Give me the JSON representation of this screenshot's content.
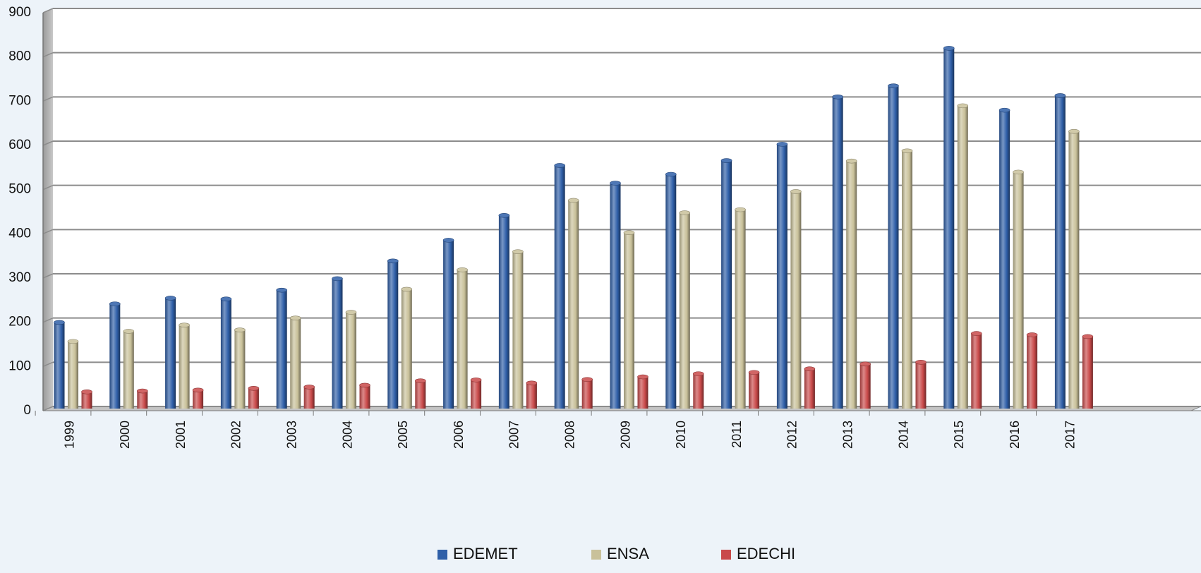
{
  "chart_data": {
    "type": "bar",
    "title": "",
    "xlabel": "",
    "ylabel": "",
    "ylim": [
      0,
      900
    ],
    "yticks": [
      0,
      100,
      200,
      300,
      400,
      500,
      600,
      700,
      800,
      900
    ],
    "grid": true,
    "legend_position": "bottom",
    "categories": [
      "1999",
      "2000",
      "2001",
      "2002",
      "2003",
      "2004",
      "2005",
      "2006",
      "2007",
      "2008",
      "2009",
      "2010",
      "2011",
      "2012",
      "2013",
      "2014",
      "2015",
      "2016",
      "2017"
    ],
    "series": [
      {
        "name": "EDEMET",
        "color": "#2f5fa8",
        "values": [
          190,
          232,
          245,
          243,
          263,
          289,
          329,
          376,
          432,
          545,
          505,
          525,
          556,
          593,
          700,
          725,
          810,
          670,
          703
        ]
      },
      {
        "name": "ENSA",
        "color": "#c9c19a",
        "values": [
          147,
          170,
          184,
          173,
          200,
          213,
          265,
          309,
          350,
          466,
          393,
          438,
          445,
          486,
          555,
          578,
          680,
          530,
          622
        ]
      },
      {
        "name": "EDECHI",
        "color": "#c94a4a",
        "values": [
          33,
          35,
          37,
          41,
          44,
          48,
          58,
          60,
          53,
          61,
          67,
          74,
          77,
          85,
          96,
          100,
          165,
          162,
          158
        ]
      }
    ]
  }
}
